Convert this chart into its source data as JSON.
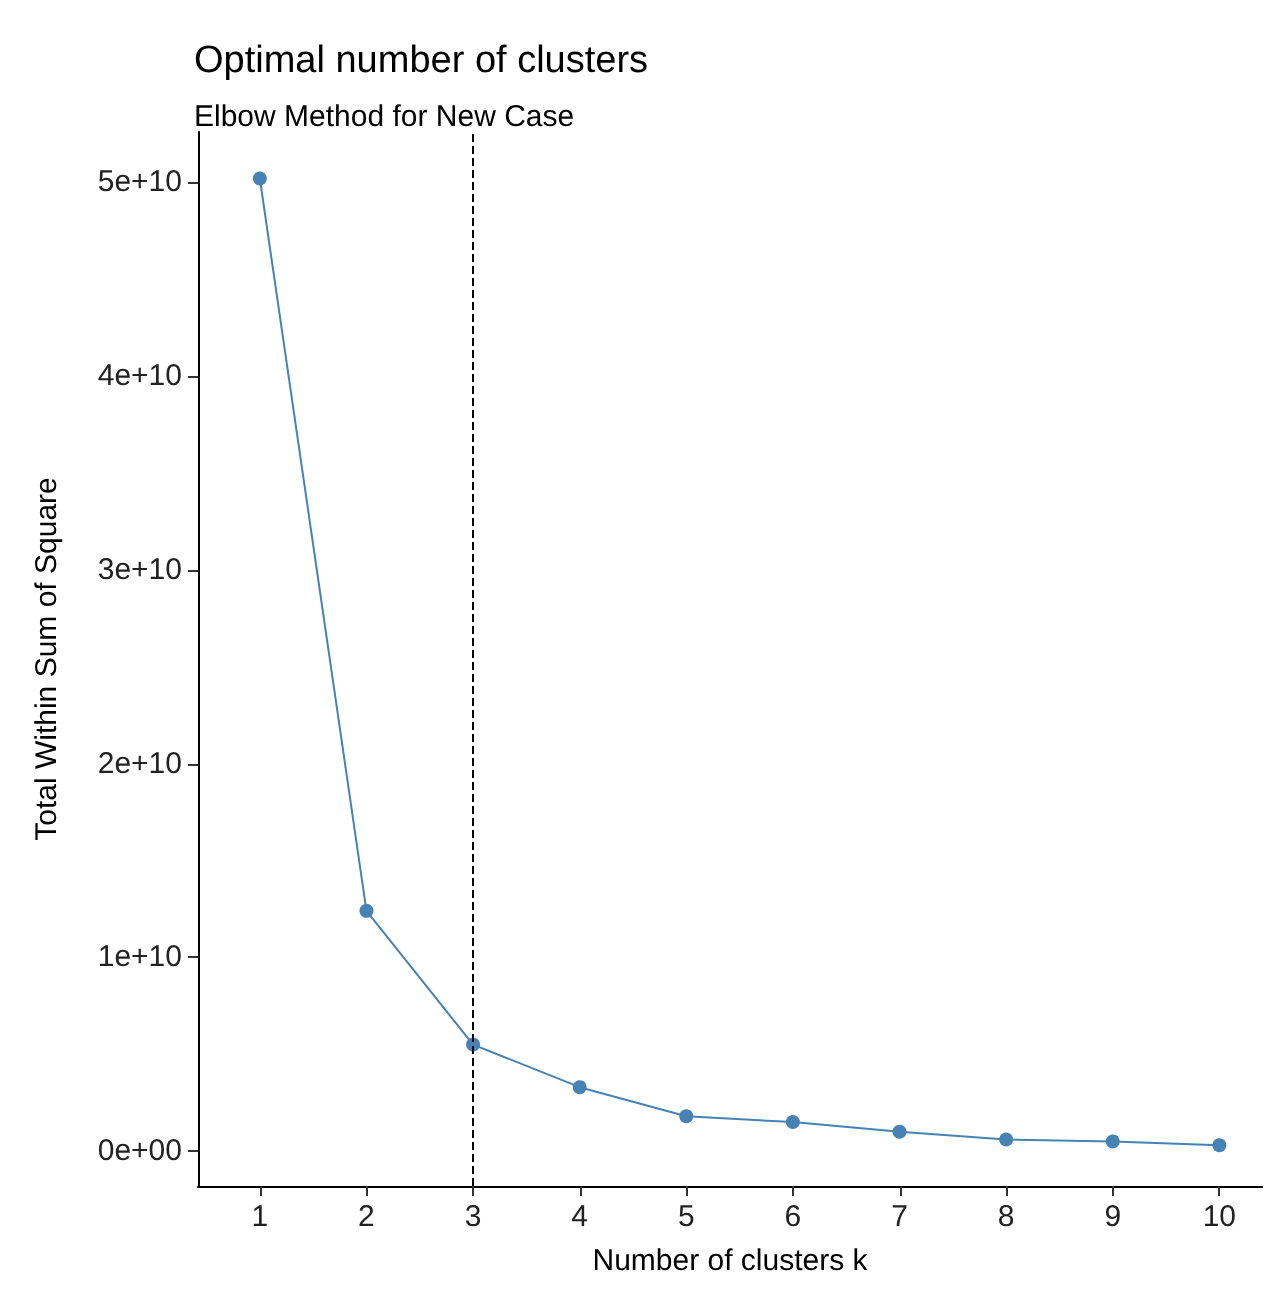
{
  "chart_data": {
    "type": "line",
    "title": "Optimal number of clusters",
    "subtitle": "Elbow Method for New Case",
    "xlabel": "Number of clusters k",
    "ylabel": "Total Within Sum of Square",
    "x": [
      1,
      2,
      3,
      4,
      5,
      6,
      7,
      8,
      9,
      10
    ],
    "series": [
      {
        "color": "#4682b4",
        "values": [
          50200000000,
          12400000000,
          5500000000,
          3300000000,
          1800000000,
          1500000000,
          1000000000,
          600000000,
          500000000,
          300000000
        ]
      }
    ],
    "xlim": [
      0.42,
      10.4
    ],
    "xticks": [
      1,
      2,
      3,
      4,
      5,
      6,
      7,
      8,
      9,
      10
    ],
    "ylim": [
      -1800000000,
      52600000000
    ],
    "yticks": [
      {
        "value": 0,
        "label": "0e+00"
      },
      {
        "value": 10000000000,
        "label": "1e+10"
      },
      {
        "value": 20000000000,
        "label": "2e+10"
      },
      {
        "value": 30000000000,
        "label": "3e+10"
      },
      {
        "value": 40000000000,
        "label": "4e+10"
      },
      {
        "value": 50000000000,
        "label": "5e+10"
      }
    ],
    "ref_lines": [
      {
        "axis": "x",
        "value": 3,
        "color": "#000000",
        "line_style": "dashed"
      }
    ],
    "marker": "circle",
    "line_style": "solid"
  }
}
